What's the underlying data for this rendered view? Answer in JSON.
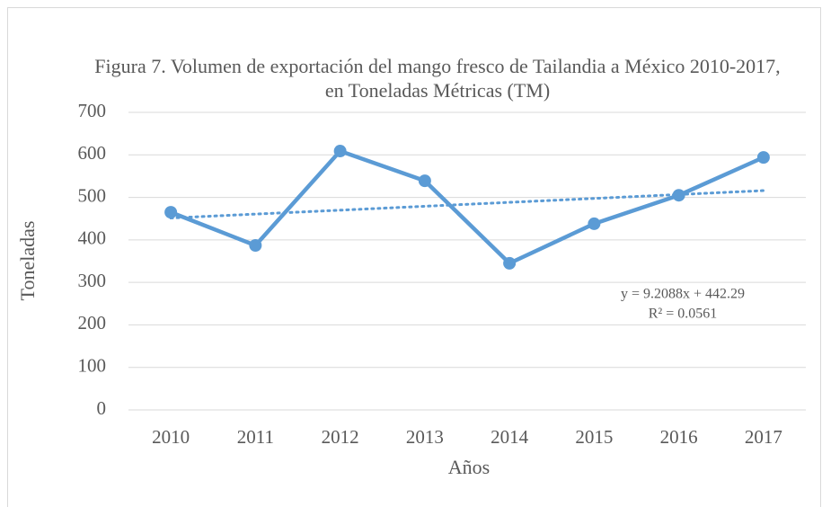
{
  "chart_data": {
    "type": "line",
    "title": "Figura 7. Volumen de exportación del mango fresco de Tailandia a México 2010-2017, en Toneladas Métricas (TM)",
    "x_label": "Años",
    "y_label": "Toneladas",
    "categories": [
      "2010",
      "2011",
      "2012",
      "2013",
      "2014",
      "2015",
      "2016",
      "2017"
    ],
    "series": [
      {
        "name": "Toneladas",
        "color": "#5b9bd5",
        "values": [
          465,
          387,
          609,
          539,
          345,
          438,
          505,
          594
        ]
      }
    ],
    "trendline": {
      "slope": 9.2088,
      "intercept": 442.29,
      "label": "y = 9.2088x + 442.29",
      "r2_label": "R² = 0.0561"
    },
    "ylim": [
      0,
      700
    ],
    "yticks": [
      0,
      100,
      200,
      300,
      400,
      500,
      600,
      700
    ],
    "grid": true
  }
}
